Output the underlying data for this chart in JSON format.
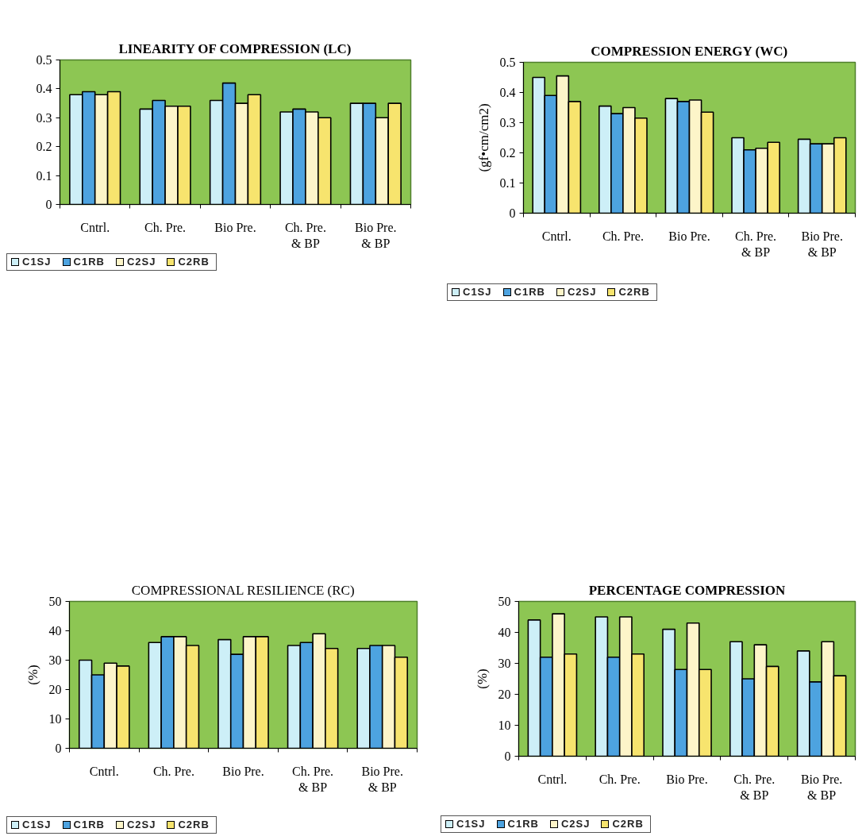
{
  "chart_data": [
    {
      "type": "bar",
      "title": "LINEARITY OF COMPRESSION (LC)",
      "categories": [
        "Cntrl.",
        "Ch. Pre.",
        "Bio Pre.",
        "Ch. Pre.\n& BP",
        "Bio Pre.\n& BP"
      ],
      "series": [
        {
          "name": "C1SJ",
          "color": "#cdeff7",
          "values": [
            0.38,
            0.33,
            0.36,
            0.32,
            0.35
          ]
        },
        {
          "name": "C1RB",
          "color": "#4da3e0",
          "values": [
            0.39,
            0.36,
            0.42,
            0.33,
            0.35
          ]
        },
        {
          "name": "C2SJ",
          "color": "#fdf5c9",
          "values": [
            0.38,
            0.34,
            0.35,
            0.32,
            0.3
          ]
        },
        {
          "name": "C2RB",
          "color": "#f7e46e",
          "values": [
            0.39,
            0.34,
            0.38,
            0.3,
            0.35
          ]
        }
      ],
      "ylim": [
        0,
        0.5
      ],
      "yticks": [
        0,
        0.1,
        0.2,
        0.3,
        0.4,
        0.5
      ],
      "grid": false,
      "legend": "bottom left"
    },
    {
      "type": "bar",
      "title": "COMPRESSION ENERGY (WC)",
      "ylabel": "(gf•cm/cm2)",
      "categories": [
        "Cntrl.",
        "Ch. Pre.",
        "Bio Pre.",
        "Ch. Pre.\n& BP",
        "Bio Pre.\n& BP"
      ],
      "series": [
        {
          "name": "C1SJ",
          "color": "#cdeff7",
          "values": [
            0.45,
            0.355,
            0.38,
            0.25,
            0.245
          ]
        },
        {
          "name": "C1RB",
          "color": "#4da3e0",
          "values": [
            0.39,
            0.33,
            0.37,
            0.21,
            0.23
          ]
        },
        {
          "name": "C2SJ",
          "color": "#fdf5c9",
          "values": [
            0.455,
            0.35,
            0.375,
            0.215,
            0.23
          ]
        },
        {
          "name": "C2RB",
          "color": "#f7e46e",
          "values": [
            0.37,
            0.315,
            0.335,
            0.235,
            0.25
          ]
        }
      ],
      "ylim": [
        0,
        0.5
      ],
      "yticks": [
        0,
        0.1,
        0.2,
        0.3,
        0.4,
        0.5
      ],
      "grid": false,
      "legend": "bottom left"
    },
    {
      "type": "bar",
      "title": "COMPRESSIONAL RESILIENCE (RC)",
      "ylabel": "(%)",
      "categories": [
        "Cntrl.",
        "Ch. Pre.",
        "Bio Pre.",
        "Ch. Pre.\n& BP",
        "Bio Pre.\n& BP"
      ],
      "series": [
        {
          "name": "C1SJ",
          "color": "#cdeff7",
          "values": [
            30,
            36,
            37,
            35,
            34
          ]
        },
        {
          "name": "C1RB",
          "color": "#4da3e0",
          "values": [
            25,
            38,
            32,
            36,
            35
          ]
        },
        {
          "name": "C2SJ",
          "color": "#fdf5c9",
          "values": [
            29,
            38,
            38,
            39,
            35
          ]
        },
        {
          "name": "C2RB",
          "color": "#f7e46e",
          "values": [
            28,
            35,
            38,
            34,
            31
          ]
        }
      ],
      "ylim": [
        0,
        50
      ],
      "yticks": [
        0,
        10,
        20,
        30,
        40,
        50
      ],
      "grid": false,
      "legend": "bottom left"
    },
    {
      "type": "bar",
      "title": "PERCENTAGE COMPRESSION",
      "ylabel": "(%)",
      "categories": [
        "Cntrl.",
        "Ch. Pre.",
        "Bio Pre.",
        "Ch. Pre.\n& BP",
        "Bio Pre.\n& BP"
      ],
      "series": [
        {
          "name": "C1SJ",
          "color": "#cdeff7",
          "values": [
            44,
            45,
            41,
            37,
            34
          ]
        },
        {
          "name": "C1RB",
          "color": "#4da3e0",
          "values": [
            32,
            32,
            28,
            25,
            24
          ]
        },
        {
          "name": "C2SJ",
          "color": "#fdf5c9",
          "values": [
            46,
            45,
            43,
            36,
            37
          ]
        },
        {
          "name": "C2RB",
          "color": "#f7e46e",
          "values": [
            33,
            33,
            28,
            29,
            26
          ]
        }
      ],
      "ylim": [
        0,
        50
      ],
      "yticks": [
        0,
        10,
        20,
        30,
        40,
        50
      ],
      "grid": false,
      "legend": "bottom left"
    }
  ]
}
